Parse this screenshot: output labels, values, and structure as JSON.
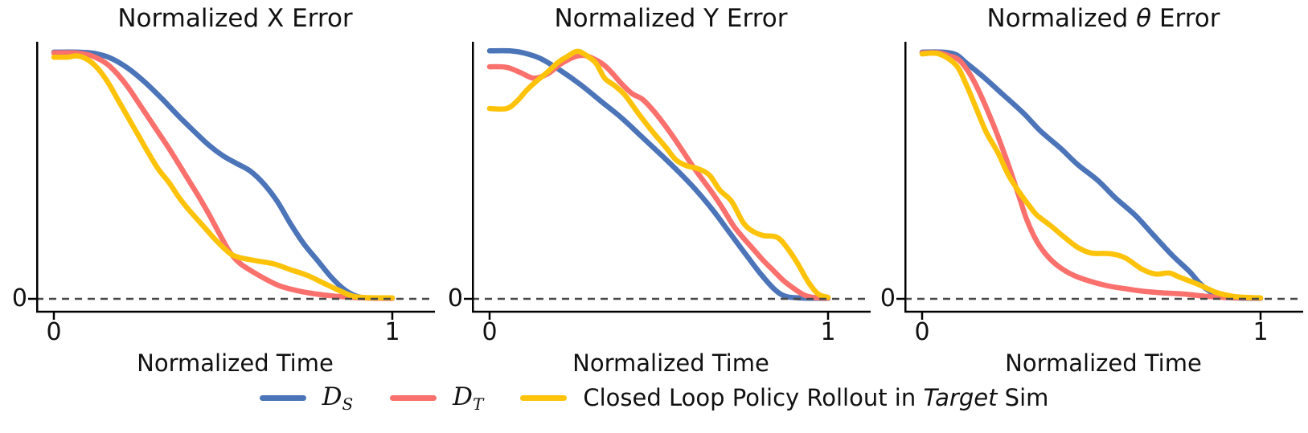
{
  "panels": [
    {
      "title_pre": "Normalized ",
      "title_var": "X",
      "title_var_italic": false,
      "title_post": " Error",
      "xlabel": "Normalized Time",
      "ytick": "0",
      "xtick_left": "0",
      "xtick_right": "1"
    },
    {
      "title_pre": "Normalized ",
      "title_var": "Y",
      "title_var_italic": false,
      "title_post": " Error",
      "xlabel": "Normalized Time",
      "ytick": "0",
      "xtick_left": "0",
      "xtick_right": "1"
    },
    {
      "title_pre": "Normalized ",
      "title_var": "θ",
      "title_var_italic": true,
      "title_post": " Error",
      "xlabel": "Normalized Time",
      "ytick": "0",
      "xtick_left": "0",
      "xtick_right": "1"
    }
  ],
  "legend": {
    "items": [
      {
        "kind": "math",
        "symbol": "D",
        "subscript": "S",
        "color": "#4c74b8"
      },
      {
        "kind": "math",
        "symbol": "D",
        "subscript": "T",
        "color": "#f9706c"
      },
      {
        "kind": "text",
        "prefix": "Closed Loop Policy Rollout in ",
        "italic": "Target",
        "suffix": " Sim",
        "color": "#fcc30a"
      }
    ]
  },
  "style": {
    "axis_color": "#000000",
    "dashed_zero_line_color": "#474747",
    "series_blue": "#4c74b8",
    "series_red": "#f9706c",
    "series_yellow": "#fcc30a"
  },
  "chart_data": [
    {
      "type": "line",
      "title": "Normalized X Error",
      "xlabel": "Normalized Time",
      "x_ticks": [
        0,
        1
      ],
      "y_ticks": [
        0
      ],
      "xlim": [
        -0.05,
        1.12
      ],
      "ylim": [
        -0.05,
        1.03
      ],
      "grid": false,
      "annotations": [
        "dashed horizontal line at y = 0"
      ],
      "legend_position": "below figure, shared",
      "series": [
        {
          "name": "D_S",
          "color": "#4c74b8",
          "points": [
            [
              0,
              0.975
            ],
            [
              0.07,
              0.975
            ],
            [
              0.12,
              0.97
            ],
            [
              0.17,
              0.95
            ],
            [
              0.22,
              0.91
            ],
            [
              0.27,
              0.855
            ],
            [
              0.32,
              0.79
            ],
            [
              0.37,
              0.72
            ],
            [
              0.42,
              0.655
            ],
            [
              0.46,
              0.605
            ],
            [
              0.5,
              0.565
            ],
            [
              0.54,
              0.535
            ],
            [
              0.58,
              0.505
            ],
            [
              0.62,
              0.455
            ],
            [
              0.66,
              0.385
            ],
            [
              0.7,
              0.295
            ],
            [
              0.74,
              0.215
            ],
            [
              0.78,
              0.15
            ],
            [
              0.82,
              0.085
            ],
            [
              0.86,
              0.035
            ],
            [
              0.9,
              0.008
            ],
            [
              0.95,
              0.003
            ],
            [
              1,
              0.002
            ]
          ]
        },
        {
          "name": "D_T",
          "color": "#f9706c",
          "points": [
            [
              0,
              0.972
            ],
            [
              0.06,
              0.972
            ],
            [
              0.1,
              0.965
            ],
            [
              0.13,
              0.95
            ],
            [
              0.16,
              0.925
            ],
            [
              0.19,
              0.885
            ],
            [
              0.22,
              0.835
            ],
            [
              0.25,
              0.775
            ],
            [
              0.28,
              0.715
            ],
            [
              0.31,
              0.655
            ],
            [
              0.34,
              0.595
            ],
            [
              0.37,
              0.53
            ],
            [
              0.4,
              0.465
            ],
            [
              0.43,
              0.4
            ],
            [
              0.46,
              0.33
            ],
            [
              0.49,
              0.255
            ],
            [
              0.52,
              0.185
            ],
            [
              0.55,
              0.14
            ],
            [
              0.59,
              0.105
            ],
            [
              0.63,
              0.075
            ],
            [
              0.67,
              0.05
            ],
            [
              0.72,
              0.032
            ],
            [
              0.77,
              0.02
            ],
            [
              0.82,
              0.012
            ],
            [
              0.88,
              0.006
            ],
            [
              0.94,
              0.003
            ],
            [
              1,
              0.002
            ]
          ]
        },
        {
          "name": "Closed Loop Policy Rollout in Target Sim",
          "color": "#fcc30a",
          "points": [
            [
              0,
              0.955
            ],
            [
              0.04,
              0.955
            ],
            [
              0.07,
              0.96
            ],
            [
              0.1,
              0.945
            ],
            [
              0.13,
              0.91
            ],
            [
              0.16,
              0.855
            ],
            [
              0.19,
              0.785
            ],
            [
              0.22,
              0.715
            ],
            [
              0.25,
              0.645
            ],
            [
              0.28,
              0.575
            ],
            [
              0.31,
              0.51
            ],
            [
              0.34,
              0.46
            ],
            [
              0.37,
              0.4
            ],
            [
              0.4,
              0.35
            ],
            [
              0.44,
              0.29
            ],
            [
              0.48,
              0.23
            ],
            [
              0.52,
              0.18
            ],
            [
              0.55,
              0.163
            ],
            [
              0.6,
              0.15
            ],
            [
              0.65,
              0.138
            ],
            [
              0.7,
              0.115
            ],
            [
              0.75,
              0.092
            ],
            [
              0.8,
              0.06
            ],
            [
              0.84,
              0.035
            ],
            [
              0.88,
              0.012
            ],
            [
              0.92,
              0.005
            ],
            [
              1,
              0.004
            ]
          ]
        }
      ]
    },
    {
      "type": "line",
      "title": "Normalized Y Error",
      "xlabel": "Normalized Time",
      "x_ticks": [
        0,
        1
      ],
      "y_ticks": [
        0
      ],
      "xlim": [
        -0.05,
        1.12
      ],
      "ylim": [
        -0.05,
        1.03
      ],
      "grid": false,
      "annotations": [
        "dashed horizontal line at y = 0"
      ],
      "legend_position": "below figure, shared",
      "series": [
        {
          "name": "D_S",
          "color": "#4c74b8",
          "points": [
            [
              0,
              0.98
            ],
            [
              0.06,
              0.98
            ],
            [
              0.1,
              0.972
            ],
            [
              0.15,
              0.95
            ],
            [
              0.21,
              0.902
            ],
            [
              0.27,
              0.845
            ],
            [
              0.33,
              0.78
            ],
            [
              0.39,
              0.715
            ],
            [
              0.45,
              0.64
            ],
            [
              0.51,
              0.565
            ],
            [
              0.56,
              0.5
            ],
            [
              0.61,
              0.43
            ],
            [
              0.66,
              0.35
            ],
            [
              0.71,
              0.26
            ],
            [
              0.76,
              0.17
            ],
            [
              0.8,
              0.1
            ],
            [
              0.84,
              0.04
            ],
            [
              0.87,
              0.012
            ],
            [
              0.91,
              0.004
            ],
            [
              1,
              0.002
            ]
          ]
        },
        {
          "name": "D_T",
          "color": "#f9706c",
          "points": [
            [
              0,
              0.917
            ],
            [
              0.05,
              0.915
            ],
            [
              0.09,
              0.895
            ],
            [
              0.13,
              0.872
            ],
            [
              0.17,
              0.888
            ],
            [
              0.21,
              0.928
            ],
            [
              0.25,
              0.956
            ],
            [
              0.28,
              0.962
            ],
            [
              0.31,
              0.947
            ],
            [
              0.34,
              0.922
            ],
            [
              0.365,
              0.888
            ],
            [
              0.39,
              0.85
            ],
            [
              0.42,
              0.812
            ],
            [
              0.45,
              0.79
            ],
            [
              0.48,
              0.75
            ],
            [
              0.51,
              0.7
            ],
            [
              0.54,
              0.645
            ],
            [
              0.57,
              0.585
            ],
            [
              0.6,
              0.525
            ],
            [
              0.63,
              0.47
            ],
            [
              0.66,
              0.415
            ],
            [
              0.69,
              0.355
            ],
            [
              0.72,
              0.29
            ],
            [
              0.75,
              0.24
            ],
            [
              0.78,
              0.195
            ],
            [
              0.81,
              0.15
            ],
            [
              0.84,
              0.11
            ],
            [
              0.87,
              0.07
            ],
            [
              0.9,
              0.04
            ],
            [
              0.93,
              0.015
            ],
            [
              0.96,
              0.005
            ],
            [
              1,
              0.003
            ]
          ]
        },
        {
          "name": "Closed Loop Policy Rollout in Target Sim",
          "color": "#fcc30a",
          "points": [
            [
              0,
              0.752
            ],
            [
              0.05,
              0.752
            ],
            [
              0.08,
              0.78
            ],
            [
              0.11,
              0.825
            ],
            [
              0.14,
              0.862
            ],
            [
              0.17,
              0.895
            ],
            [
              0.2,
              0.932
            ],
            [
              0.23,
              0.958
            ],
            [
              0.26,
              0.978
            ],
            [
              0.29,
              0.958
            ],
            [
              0.315,
              0.93
            ],
            [
              0.34,
              0.872
            ],
            [
              0.37,
              0.842
            ],
            [
              0.4,
              0.805
            ],
            [
              0.44,
              0.732
            ],
            [
              0.48,
              0.663
            ],
            [
              0.52,
              0.6
            ],
            [
              0.55,
              0.55
            ],
            [
              0.58,
              0.527
            ],
            [
              0.62,
              0.512
            ],
            [
              0.65,
              0.488
            ],
            [
              0.68,
              0.43
            ],
            [
              0.715,
              0.385
            ],
            [
              0.75,
              0.3
            ],
            [
              0.78,
              0.265
            ],
            [
              0.81,
              0.25
            ],
            [
              0.85,
              0.243
            ],
            [
              0.88,
              0.2
            ],
            [
              0.91,
              0.14
            ],
            [
              0.94,
              0.07
            ],
            [
              0.97,
              0.02
            ],
            [
              1,
              0.006
            ]
          ]
        }
      ]
    },
    {
      "type": "line",
      "title": "Normalized θ Error",
      "xlabel": "Normalized Time",
      "x_ticks": [
        0,
        1
      ],
      "y_ticks": [
        0
      ],
      "xlim": [
        -0.05,
        1.12
      ],
      "ylim": [
        -0.05,
        1.03
      ],
      "grid": false,
      "annotations": [
        "dashed horizontal line at y = 0"
      ],
      "legend_position": "below figure, shared",
      "series": [
        {
          "name": "D_S",
          "color": "#4c74b8",
          "points": [
            [
              0,
              0.975
            ],
            [
              0.06,
              0.975
            ],
            [
              0.1,
              0.965
            ],
            [
              0.13,
              0.933
            ],
            [
              0.18,
              0.878
            ],
            [
              0.24,
              0.806
            ],
            [
              0.3,
              0.733
            ],
            [
              0.35,
              0.663
            ],
            [
              0.41,
              0.594
            ],
            [
              0.46,
              0.53
            ],
            [
              0.52,
              0.467
            ],
            [
              0.57,
              0.4
            ],
            [
              0.63,
              0.33
            ],
            [
              0.68,
              0.257
            ],
            [
              0.74,
              0.171
            ],
            [
              0.79,
              0.108
            ],
            [
              0.82,
              0.062
            ],
            [
              0.85,
              0.03
            ],
            [
              0.88,
              0.01
            ],
            [
              0.92,
              0.004
            ],
            [
              1,
              0.002
            ]
          ]
        },
        {
          "name": "D_T",
          "color": "#f9706c",
          "points": [
            [
              0,
              0.972
            ],
            [
              0.05,
              0.972
            ],
            [
              0.08,
              0.96
            ],
            [
              0.11,
              0.943
            ],
            [
              0.145,
              0.88
            ],
            [
              0.175,
              0.8
            ],
            [
              0.21,
              0.69
            ],
            [
              0.24,
              0.585
            ],
            [
              0.265,
              0.49
            ],
            [
              0.29,
              0.39
            ],
            [
              0.31,
              0.31
            ],
            [
              0.34,
              0.225
            ],
            [
              0.375,
              0.162
            ],
            [
              0.415,
              0.117
            ],
            [
              0.46,
              0.086
            ],
            [
              0.54,
              0.054
            ],
            [
              0.61,
              0.038
            ],
            [
              0.66,
              0.029
            ],
            [
              0.72,
              0.023
            ],
            [
              0.78,
              0.018
            ],
            [
              0.84,
              0.01
            ],
            [
              0.9,
              0.005
            ],
            [
              1,
              0.003
            ]
          ]
        },
        {
          "name": "Closed Loop Policy Rollout in Target Sim",
          "color": "#fcc30a",
          "points": [
            [
              0,
              0.968
            ],
            [
              0.05,
              0.968
            ],
            [
              0.1,
              0.924
            ],
            [
              0.13,
              0.848
            ],
            [
              0.16,
              0.752
            ],
            [
              0.19,
              0.657
            ],
            [
              0.225,
              0.575
            ],
            [
              0.255,
              0.489
            ],
            [
              0.29,
              0.416
            ],
            [
              0.32,
              0.362
            ],
            [
              0.34,
              0.33
            ],
            [
              0.38,
              0.289
            ],
            [
              0.42,
              0.244
            ],
            [
              0.46,
              0.203
            ],
            [
              0.5,
              0.181
            ],
            [
              0.556,
              0.178
            ],
            [
              0.6,
              0.162
            ],
            [
              0.65,
              0.117
            ],
            [
              0.69,
              0.098
            ],
            [
              0.73,
              0.102
            ],
            [
              0.76,
              0.086
            ],
            [
              0.82,
              0.055
            ],
            [
              0.87,
              0.025
            ],
            [
              0.92,
              0.01
            ],
            [
              0.97,
              0.005
            ],
            [
              1,
              0.004
            ]
          ]
        }
      ]
    }
  ]
}
